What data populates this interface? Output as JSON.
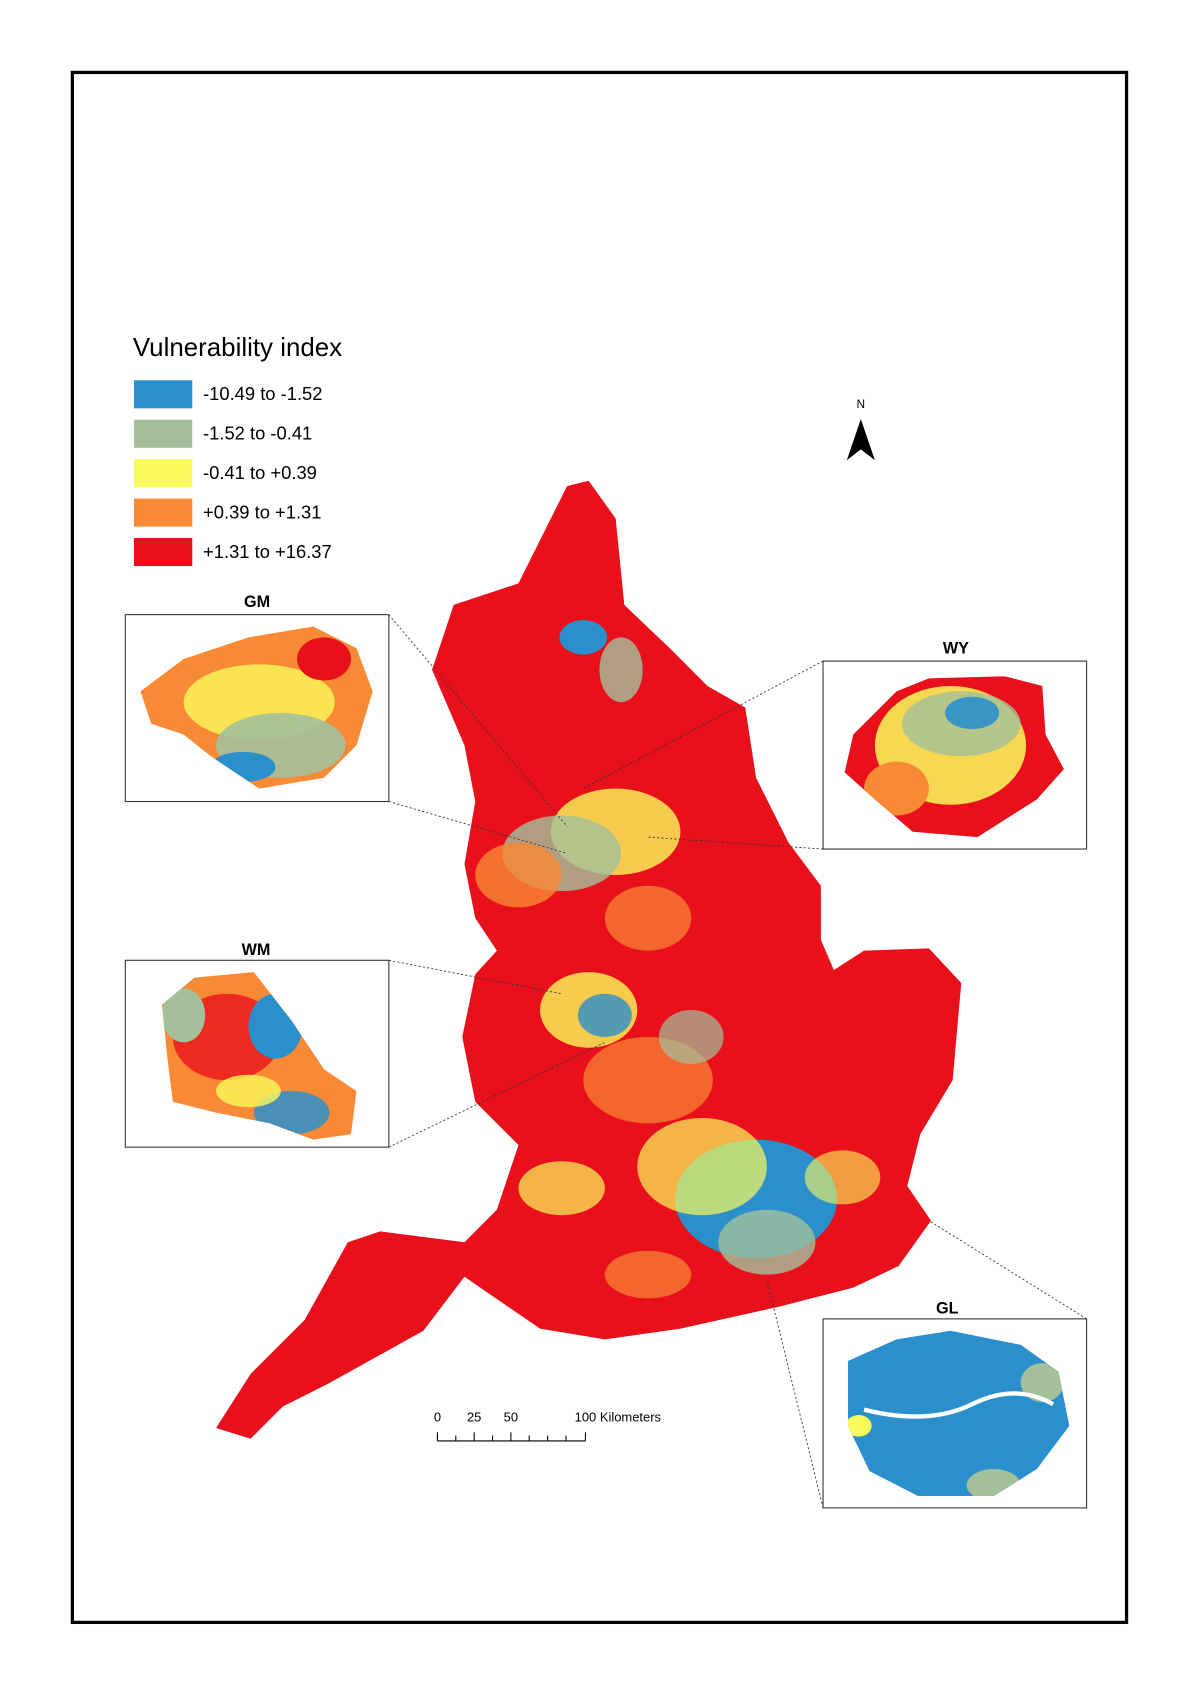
{
  "legend": {
    "title": "Vulnerability index",
    "items": [
      {
        "label": "-10.49 to -1.52",
        "color": "#2b8fcc"
      },
      {
        "label": "-1.52 to -0.41",
        "color": "#a3c09b"
      },
      {
        "label": "-0.41 to +0.39",
        "color": "#fafa5a"
      },
      {
        "label": "+0.39 to +1.31",
        "color": "#f98a35"
      },
      {
        "label": "+1.31 to +16.37",
        "color": "#e8111b"
      }
    ]
  },
  "north": "N",
  "insets": {
    "gm": "GM",
    "wy": "WY",
    "wm": "WM",
    "gl": "GL"
  },
  "scale_bar": {
    "labels": [
      "0",
      "25",
      "50",
      "100 Kilometers"
    ]
  }
}
